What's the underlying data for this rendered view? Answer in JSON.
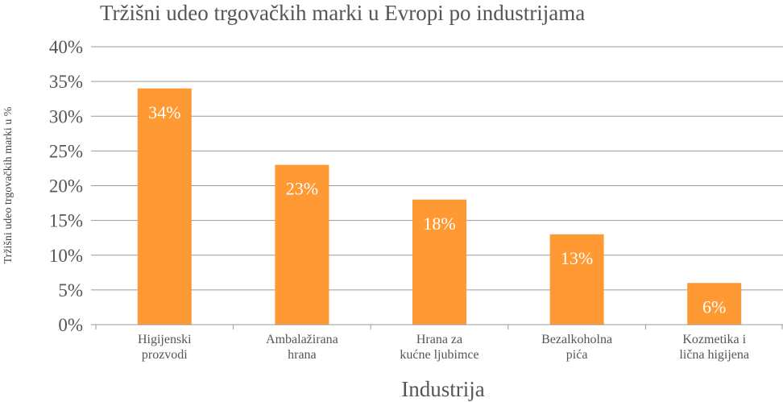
{
  "chart_data": {
    "type": "bar",
    "title": "Tržišni udeo trgovačkih marki u Evropi po industrijama",
    "xlabel": "Industrija",
    "ylabel": "Tržišni udeo trgovačkih marki u %",
    "categories": [
      [
        "Higijenski",
        "prozvodi"
      ],
      [
        "Ambalažirana",
        "hrana"
      ],
      [
        "Hrana za",
        "kućne ljubimce"
      ],
      [
        "Bezalkoholna",
        "pića"
      ],
      [
        "Kozmetika i",
        "lična higijena"
      ]
    ],
    "values": [
      34,
      23,
      18,
      13,
      6
    ],
    "data_labels": [
      "34%",
      "23%",
      "18%",
      "13%",
      "6%"
    ],
    "ylim": [
      0,
      40
    ],
    "yticks": [
      0,
      5,
      10,
      15,
      20,
      25,
      30,
      35,
      40
    ],
    "ytick_labels": [
      "0%",
      "5%",
      "10%",
      "15%",
      "20%",
      "25%",
      "30%",
      "35%",
      "40%"
    ],
    "grid": true,
    "legend": "none",
    "colors": {
      "bar": "#FF9933",
      "grid": "#9a9a9a",
      "label_on_bar": "#ffffff",
      "text": "#555555"
    }
  }
}
